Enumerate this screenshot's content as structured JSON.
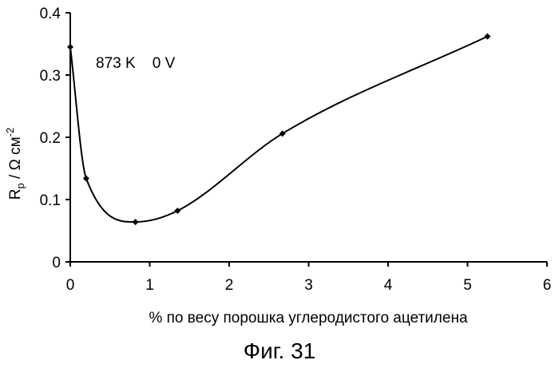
{
  "chart_data": {
    "type": "line",
    "smooth": true,
    "grid": false,
    "legend": "none",
    "xlabel": "% по весу порошка углеродистого ацетилена",
    "ylabel_main": "R",
    "ylabel_sub": "p",
    "ylabel_rest": " / Ω см",
    "ylabel_sup": "-2",
    "xlim": [
      0,
      6
    ],
    "ylim": [
      0,
      0.4
    ],
    "x_ticks": [
      "0",
      "1",
      "2",
      "3",
      "4",
      "5",
      "6"
    ],
    "y_ticks": [
      "0",
      "0.1",
      "0.2",
      "0.3",
      "0.4"
    ],
    "annotation": "873 K    0 V",
    "caption": "Фиг. 31",
    "series": [
      {
        "color": "#000000",
        "points": [
          {
            "x": 0.0,
            "y": 0.345
          },
          {
            "x": 0.2,
            "y": 0.134
          },
          {
            "x": 0.82,
            "y": 0.064
          },
          {
            "x": 1.35,
            "y": 0.082
          },
          {
            "x": 2.67,
            "y": 0.206
          },
          {
            "x": 5.25,
            "y": 0.362
          }
        ]
      }
    ]
  }
}
